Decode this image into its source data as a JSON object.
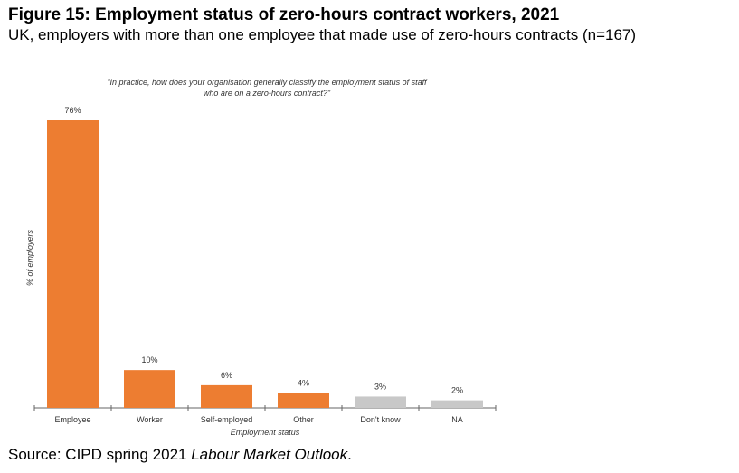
{
  "header": {
    "title": "Figure 15: Employment status of zero-hours contract workers, 2021",
    "subtitle": "UK, employers with more than one employee that made use of zero-hours contracts (n=167)"
  },
  "footer": {
    "source_prefix": "Source: CIPD spring 2021 ",
    "source_title": "Labour Market Outlook",
    "source_suffix": "."
  },
  "chart_data": {
    "type": "bar",
    "title_line1": "\"In practice, how does your organisation generally classify the employment status of staff",
    "title_line2": "who are on a zero-hours contract?\"",
    "xlabel": "Employment status",
    "ylabel": "% of employers",
    "categories": [
      "Employee",
      "Worker",
      "Self-employed",
      "Other",
      "Don't know",
      "NA"
    ],
    "values": [
      76,
      10,
      6,
      4,
      3,
      2
    ],
    "data_labels": [
      "76%",
      "10%",
      "6%",
      "4%",
      "3%",
      "2%"
    ],
    "colors": [
      "#ED7D31",
      "#ED7D31",
      "#ED7D31",
      "#ED7D31",
      "#C8C8C8",
      "#C8C8C8"
    ],
    "ylim": [
      0,
      76
    ],
    "grid": false
  }
}
